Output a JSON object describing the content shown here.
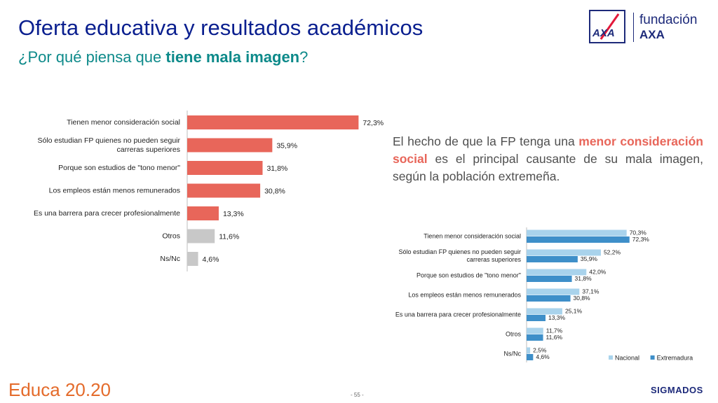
{
  "header": {
    "title": "Oferta educativa y resultados académicos",
    "subtitle_pre": "¿Por qué piensa que ",
    "subtitle_bold": "tiene mala imagen",
    "subtitle_post": "?"
  },
  "logo": {
    "brand_top": "fundación",
    "brand_bottom": "AXA",
    "mark": "AXA"
  },
  "note": {
    "pre": "El hecho de que la FP tenga una ",
    "highlight": "menor consideración social",
    "post": " es el principal causante de su mala imagen, según la población extremeña."
  },
  "footer": {
    "left": "Educa 20.20",
    "page": "- 55 -",
    "right": "SIGMADOS"
  },
  "colors": {
    "bar_main": "#e8665a",
    "bar_grey": "#c8c8c8",
    "nacional": "#a9d3ec",
    "extremadura": "#3e8fc9"
  },
  "chart_data": [
    {
      "type": "bar",
      "orientation": "horizontal",
      "categories": [
        "Tienen menor consideración social",
        "Sólo estudian FP quienes no pueden seguir carreras superiores",
        "Porque son estudios de \"tono menor\"",
        "Los empleos están menos remunerados",
        "Es una barrera para crecer profesionalmente",
        "Otros",
        "Ns/Nc"
      ],
      "values": [
        72.3,
        35.9,
        31.8,
        30.8,
        13.3,
        11.6,
        4.6
      ],
      "value_labels": [
        "72,3%",
        "35,9%",
        "31,8%",
        "30,8%",
        "13,3%",
        "11,6%",
        "4,6%"
      ],
      "bar_colors": [
        "#e8665a",
        "#e8665a",
        "#e8665a",
        "#e8665a",
        "#e8665a",
        "#c8c8c8",
        "#c8c8c8"
      ],
      "xlim": [
        0,
        100
      ]
    },
    {
      "type": "bar",
      "orientation": "horizontal",
      "categories": [
        "Tienen menor consideración social",
        "Sólo estudian FP quienes no pueden seguir carreras superiores",
        "Porque son estudios de \"tono menor\"",
        "Los empleos están menos remunerados",
        "Es una barrera para crecer profesionalmente",
        "Otros",
        "Ns/Nc"
      ],
      "series": [
        {
          "name": "Nacional",
          "color": "#a9d3ec",
          "values": [
            70.3,
            52.2,
            42.0,
            37.1,
            25.1,
            11.7,
            2.5
          ],
          "labels": [
            "70,3%",
            "52,2%",
            "42,0%",
            "37,1%",
            "25,1%",
            "11,7%",
            "2,5%"
          ]
        },
        {
          "name": "Extremadura",
          "color": "#3e8fc9",
          "values": [
            72.3,
            35.9,
            31.8,
            30.8,
            13.3,
            11.6,
            4.6
          ],
          "labels": [
            "72,3%",
            "35,9%",
            "31,8%",
            "30,8%",
            "13,3%",
            "11,6%",
            "4,6%"
          ]
        }
      ],
      "legend_position": "bottom-right",
      "xlim": [
        0,
        100
      ]
    }
  ]
}
